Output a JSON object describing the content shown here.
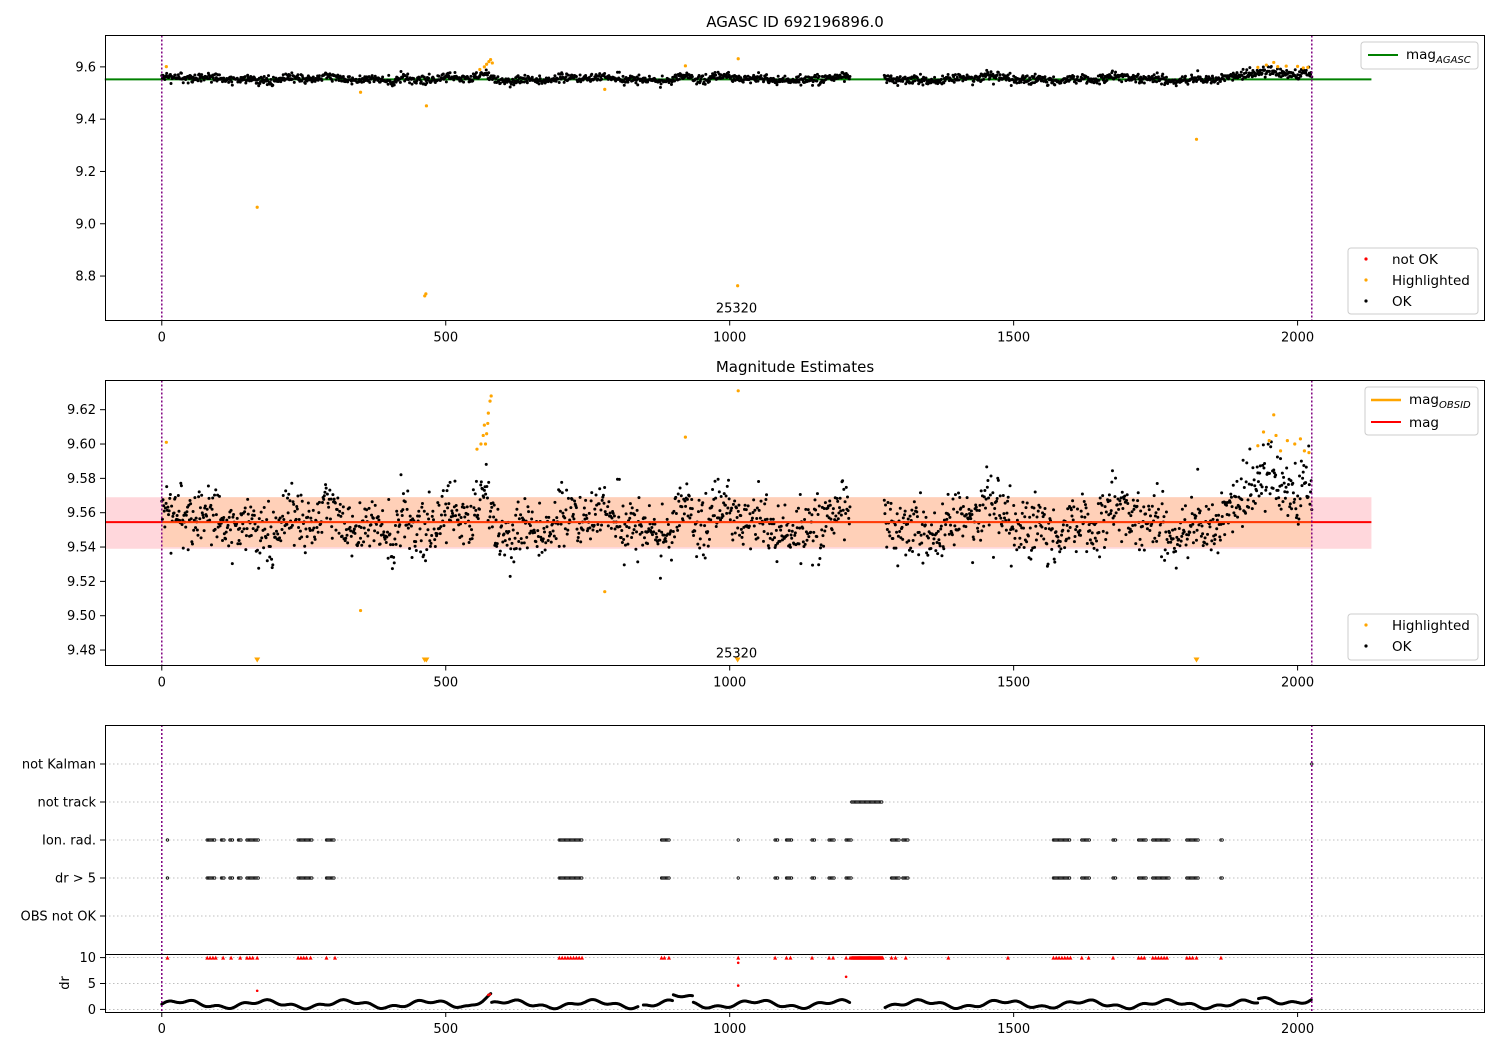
{
  "colors": {
    "ok": "#000000",
    "highlighted": "#ffa500",
    "not_ok": "#ff0000",
    "mag_agasc_line": "#008000",
    "mag_line": "#ff0000",
    "mag_obsid_line": "#ffa500",
    "band_outer": "#ffd7dc",
    "band_inner": "#ffd0b8",
    "obsid_boundary": "#800080"
  },
  "chart_data": [
    {
      "type": "scatter",
      "title": "AGASC ID 692196896.0",
      "xlim": [
        -100,
        2330
      ],
      "ylim": [
        8.63,
        9.72
      ],
      "xticks": [
        0,
        500,
        1000,
        1500,
        2000
      ],
      "yticks": [
        8.8,
        9.0,
        9.2,
        9.4,
        9.6
      ],
      "xtick_labels": [
        "0",
        "500",
        "1000",
        "1500",
        "2000"
      ],
      "ytick_labels": [
        "8.8",
        "9.0",
        "9.2",
        "9.4",
        "9.6"
      ],
      "obsid_boundaries": [
        0,
        2025
      ],
      "obsid_label": "25320",
      "horizontal_line": {
        "label": "mag",
        "subscript": "AGASC",
        "y": 9.552,
        "x_range": [
          0,
          2130
        ]
      },
      "series": [
        {
          "name": "not OK",
          "marker": "dot",
          "points": []
        },
        {
          "name": "Highlighted",
          "marker": "dot",
          "points": [
            [
              8,
              9.601
            ],
            [
              168,
              9.063
            ],
            [
              350,
              9.503
            ],
            [
              463,
              8.724
            ],
            [
              465,
              8.732
            ],
            [
              466,
              9.451
            ],
            [
              560,
              9.59
            ],
            [
              568,
              9.6
            ],
            [
              572,
              9.61
            ],
            [
              576,
              9.62
            ],
            [
              579,
              9.628
            ],
            [
              582,
              9.615
            ],
            [
              922,
              9.604
            ],
            [
              1015,
              9.631
            ],
            [
              1014,
              8.763
            ],
            [
              780,
              9.514
            ],
            [
              1822,
              9.323
            ],
            [
              1930,
              9.598
            ],
            [
              1945,
              9.607
            ],
            [
              1958,
              9.617
            ],
            [
              1965,
              9.601
            ],
            [
              1980,
              9.603
            ],
            [
              2000,
              9.602
            ],
            [
              2010,
              9.596
            ],
            [
              2018,
              9.598
            ]
          ]
        },
        {
          "name": "OK",
          "marker": "dot",
          "generated": "dense series, magnitude 9.52–9.59 across x 0–2025 with gap 1215–1270",
          "points": []
        }
      ],
      "legends": [
        {
          "placement": "upper right",
          "entries": [
            "mag_AGASC"
          ]
        },
        {
          "placement": "lower right",
          "entries": [
            "not OK",
            "Highlighted",
            "OK"
          ]
        }
      ]
    },
    {
      "type": "scatter",
      "title": "Magnitude Estimates",
      "xlim": [
        -100,
        2330
      ],
      "ylim": [
        9.471,
        9.637
      ],
      "xticks": [
        0,
        500,
        1000,
        1500,
        2000
      ],
      "yticks": [
        9.48,
        9.5,
        9.52,
        9.54,
        9.56,
        9.58,
        9.6,
        9.62
      ],
      "xtick_labels": [
        "0",
        "500",
        "1000",
        "1500",
        "2000"
      ],
      "ytick_labels": [
        "9.48",
        "9.50",
        "9.52",
        "9.54",
        "9.56",
        "9.58",
        "9.60",
        "9.62"
      ],
      "obsid_boundaries": [
        0,
        2025
      ],
      "obsid_label": "25320",
      "mag": 9.5545,
      "mag_obsid": 9.5545,
      "band_outer": [
        9.539,
        9.569
      ],
      "band_inner": [
        9.54,
        9.569
      ],
      "highlighted_below_range_x": [
        168,
        463,
        466,
        1014,
        1822
      ],
      "highlighted_points": [
        [
          8,
          9.601
        ],
        [
          350,
          9.503
        ],
        [
          555,
          9.597
        ],
        [
          562,
          9.6
        ],
        [
          566,
          9.605
        ],
        [
          568,
          9.611
        ],
        [
          572,
          9.606
        ],
        [
          575,
          9.618
        ],
        [
          578,
          9.625
        ],
        [
          580,
          9.628
        ],
        [
          574,
          9.612
        ],
        [
          570,
          9.6
        ],
        [
          922,
          9.604
        ],
        [
          1015,
          9.631
        ],
        [
          780,
          9.514
        ],
        [
          1930,
          9.599
        ],
        [
          1940,
          9.607
        ],
        [
          1950,
          9.602
        ],
        [
          1958,
          9.617
        ],
        [
          1962,
          9.605
        ],
        [
          1970,
          9.596
        ],
        [
          1982,
          9.602
        ],
        [
          1995,
          9.6
        ],
        [
          2005,
          9.603
        ],
        [
          2012,
          9.596
        ],
        [
          2020,
          9.595
        ]
      ],
      "legends": [
        {
          "placement": "upper right",
          "entries": [
            "mag_OBSID",
            "mag"
          ]
        },
        {
          "placement": "lower right",
          "entries": [
            "Highlighted",
            "OK"
          ]
        }
      ]
    },
    {
      "type": "scatter",
      "title": "",
      "category_axis": [
        "not Kalman",
        "not track",
        "Ion. rad.",
        "dr > 5",
        "OBS not OK"
      ],
      "dr_axis": {
        "label": "dr",
        "ylim": [
          -0.5,
          10.5
        ],
        "yticks": [
          0,
          5,
          10
        ],
        "ytick_labels": [
          "0",
          "5",
          "10"
        ]
      },
      "xlim": [
        -100,
        2330
      ],
      "xticks": [
        0,
        500,
        1000,
        1500,
        2000
      ],
      "xtick_labels": [
        "0",
        "500",
        "1000",
        "1500",
        "2000"
      ],
      "obsid_boundaries": [
        0,
        2025
      ],
      "flag_clusters": {
        "ion_rad": [
          [
            10,
            12
          ],
          [
            80,
            95
          ],
          [
            105,
            110
          ],
          [
            120,
            125
          ],
          [
            135,
            140
          ],
          [
            150,
            170
          ],
          [
            240,
            265
          ],
          [
            290,
            305
          ],
          [
            700,
            740
          ],
          [
            880,
            895
          ],
          [
            1015,
            1017
          ],
          [
            1080,
            1085
          ],
          [
            1100,
            1110
          ],
          [
            1145,
            1150
          ],
          [
            1175,
            1185
          ],
          [
            1205,
            1215
          ],
          [
            1285,
            1300
          ],
          [
            1305,
            1315
          ],
          [
            1570,
            1600
          ],
          [
            1620,
            1635
          ],
          [
            1675,
            1680
          ],
          [
            1720,
            1735
          ],
          [
            1745,
            1775
          ],
          [
            1805,
            1825
          ],
          [
            1865,
            1868
          ]
        ],
        "dr_gt_5": [
          [
            10,
            12
          ],
          [
            80,
            95
          ],
          [
            105,
            110
          ],
          [
            120,
            125
          ],
          [
            135,
            140
          ],
          [
            150,
            170
          ],
          [
            240,
            265
          ],
          [
            290,
            305
          ],
          [
            700,
            740
          ],
          [
            880,
            895
          ],
          [
            1015,
            1017
          ],
          [
            1080,
            1085
          ],
          [
            1100,
            1110
          ],
          [
            1145,
            1150
          ],
          [
            1175,
            1185
          ],
          [
            1205,
            1215
          ],
          [
            1285,
            1300
          ],
          [
            1305,
            1315
          ],
          [
            1570,
            1600
          ],
          [
            1620,
            1635
          ],
          [
            1675,
            1680
          ],
          [
            1720,
            1735
          ],
          [
            1745,
            1775
          ],
          [
            1805,
            1825
          ],
          [
            1865,
            1868
          ]
        ],
        "not_track": [
          [
            1215,
            1270
          ]
        ],
        "not_kalman": [
          [
            2025,
            2026
          ]
        ]
      },
      "dr_red_points_x": [
        10,
        80,
        85,
        90,
        95,
        108,
        122,
        138,
        150,
        155,
        160,
        168,
        240,
        245,
        250,
        255,
        262,
        290,
        305,
        700,
        705,
        710,
        715,
        720,
        725,
        730,
        735,
        740,
        880,
        885,
        893,
        1015,
        1080,
        1100,
        1107,
        1145,
        1175,
        1182,
        1205,
        1212,
        1285,
        1292,
        1310,
        1385,
        1490,
        1570,
        1575,
        1580,
        1585,
        1590,
        1595,
        1600,
        1620,
        1632,
        1675,
        1720,
        1725,
        1730,
        1745,
        1750,
        1755,
        1760,
        1765,
        1770,
        1805,
        1810,
        1815,
        1822,
        1865
      ],
      "dr_red_extra_points": [
        [
          168,
          3.6
        ],
        [
          1015,
          4.6
        ],
        [
          1015,
          9.0
        ],
        [
          1205,
          6.3
        ],
        [
          575,
          2.8
        ],
        [
          578,
          2.9
        ]
      ]
    }
  ]
}
